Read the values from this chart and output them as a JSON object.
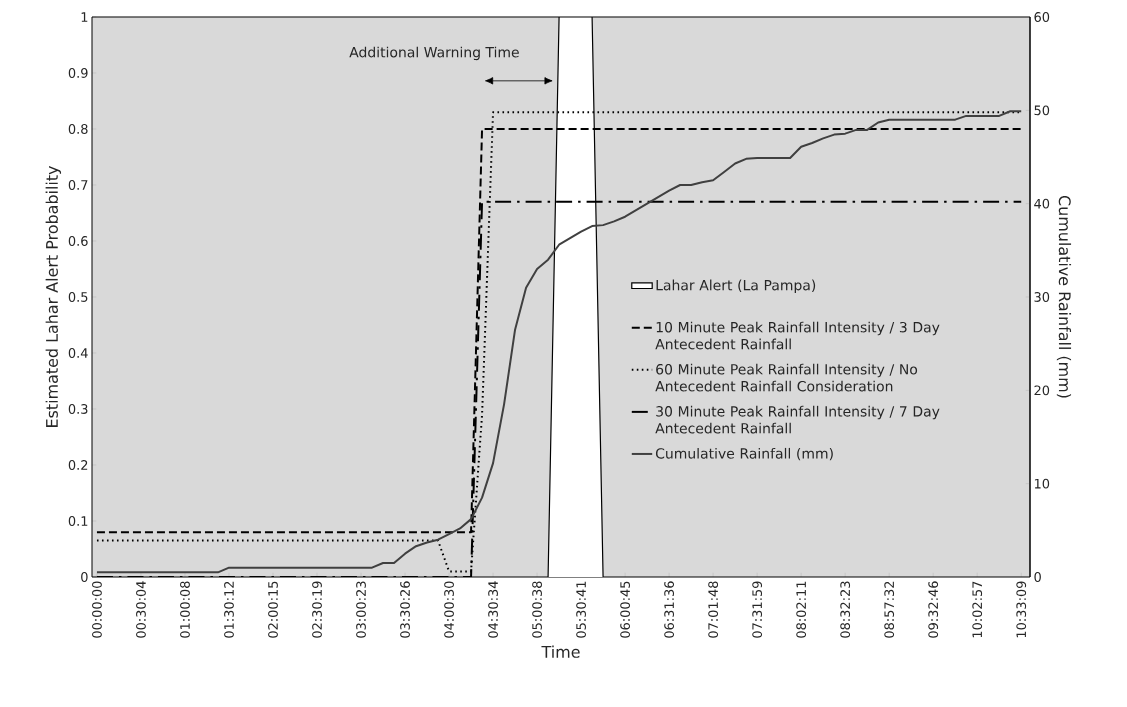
{
  "chart_data": {
    "type": "line",
    "xlabel": "Time",
    "ylabel": "Estimated Lahar Alert Probability",
    "y2label": "Cumulative Rainfall (mm)",
    "categories": [
      "00:00:00",
      null,
      null,
      null,
      "00:30:04",
      null,
      null,
      null,
      "01:00:08",
      null,
      null,
      null,
      "01:30:12",
      null,
      null,
      null,
      "02:00:15",
      null,
      null,
      null,
      "02:30:19",
      null,
      null,
      null,
      "03:00:23",
      null,
      null,
      null,
      "03:30:26",
      null,
      null,
      null,
      "04:00:30",
      null,
      null,
      null,
      "04:30:34",
      null,
      null,
      null,
      "05:00:38",
      null,
      null,
      null,
      "05:30:41",
      null,
      null,
      null,
      "06:00:45",
      null,
      null,
      null,
      "06:31:36",
      null,
      null,
      null,
      "07:01:48",
      null,
      null,
      null,
      "07:31:59",
      null,
      null,
      null,
      "08:02:11",
      null,
      null,
      null,
      "08:32:23",
      null,
      null,
      null,
      "08:57:32",
      null,
      null,
      null,
      "09:32:46",
      null,
      null,
      null,
      "10:02:57",
      null,
      null,
      null,
      "10:33:09"
    ],
    "ylim": [
      0,
      1
    ],
    "yticks": [
      0,
      0.1,
      0.2,
      0.3,
      0.4,
      0.5,
      0.6,
      0.7,
      0.8,
      0.9,
      1
    ],
    "y2lim": [
      0,
      60
    ],
    "y2ticks": [
      0,
      10,
      20,
      30,
      40,
      50,
      60
    ],
    "legend": "right",
    "marker": "none",
    "annotations": [
      "Additional Warning Time"
    ],
    "series": [
      {
        "name": "Lahar Alert (La Pampa)",
        "type": "area",
        "color": "#ffffff",
        "values": [
          null,
          null,
          null,
          null,
          null,
          null,
          null,
          null,
          null,
          null,
          null,
          null,
          null,
          null,
          null,
          null,
          null,
          null,
          null,
          null,
          null,
          null,
          null,
          null,
          null,
          null,
          null,
          null,
          null,
          null,
          null,
          null,
          null,
          null,
          null,
          null,
          null,
          null,
          null,
          null,
          null,
          0,
          1,
          1,
          1,
          1,
          0,
          null,
          null,
          null,
          null,
          null,
          null,
          null,
          null,
          null,
          null,
          null,
          null,
          null,
          null,
          null,
          null,
          null,
          null,
          null,
          null,
          null,
          null,
          null,
          null,
          null,
          null,
          null,
          null,
          null,
          null,
          null,
          null,
          null,
          null,
          null,
          null,
          null,
          null
        ]
      },
      {
        "name": "10 Minute Peak Rainfall Intensity / 3 Day Antecedent Rainfall",
        "color": "#000000",
        "line_style": "dashed",
        "values": [
          0.08,
          0.08,
          0.08,
          0.08,
          0.08,
          0.08,
          0.08,
          0.08,
          0.08,
          0.08,
          0.08,
          0.08,
          0.08,
          0.08,
          0.08,
          0.08,
          0.08,
          0.08,
          0.08,
          0.08,
          0.08,
          0.08,
          0.08,
          0.08,
          0.08,
          0.08,
          0.08,
          0.08,
          0.08,
          0.08,
          0.08,
          0.08,
          0.08,
          0.08,
          0.08,
          0.8,
          0.8,
          0.8,
          0.8,
          0.8,
          0.8,
          0.8,
          0.8,
          0.8,
          0.8,
          0.8,
          0.8,
          0.8,
          0.8,
          0.8,
          0.8,
          0.8,
          0.8,
          0.8,
          0.8,
          0.8,
          0.8,
          0.8,
          0.8,
          0.8,
          0.8,
          0.8,
          0.8,
          0.8,
          0.8,
          0.8,
          0.8,
          0.8,
          0.8,
          0.8,
          0.8,
          0.8,
          0.8,
          0.8,
          0.8,
          0.8,
          0.8,
          0.8,
          0.8,
          0.8,
          0.8,
          0.8,
          0.8,
          0.8,
          0.8
        ]
      },
      {
        "name": "60 Minute Peak Rainfall Intensity / No Antecedent Rainfall Consideration",
        "color": "#000000",
        "line_style": "dotted",
        "values": [
          0.065,
          0.065,
          0.065,
          0.065,
          0.065,
          0.065,
          0.065,
          0.065,
          0.065,
          0.065,
          0.065,
          0.065,
          0.065,
          0.065,
          0.065,
          0.065,
          0.065,
          0.065,
          0.065,
          0.065,
          0.065,
          0.065,
          0.065,
          0.065,
          0.065,
          0.065,
          0.065,
          0.065,
          0.065,
          0.065,
          0.065,
          0.065,
          0.01,
          0.01,
          0.01,
          0.29,
          0.83,
          0.83,
          0.83,
          0.83,
          0.83,
          0.83,
          0.83,
          0.83,
          0.83,
          0.83,
          0.83,
          0.83,
          0.83,
          0.83,
          0.83,
          0.83,
          0.83,
          0.83,
          0.83,
          0.83,
          0.83,
          0.83,
          0.83,
          0.83,
          0.83,
          0.83,
          0.83,
          0.83,
          0.83,
          0.83,
          0.83,
          0.83,
          0.83,
          0.83,
          0.83,
          0.83,
          0.83,
          0.83,
          0.83,
          0.83,
          0.83,
          0.83,
          0.83,
          0.83,
          0.83,
          0.83,
          0.83,
          0.83,
          0.83
        ]
      },
      {
        "name": "30 Minute Peak Rainfall Intensity / 7 Day Antecedent Rainfall",
        "color": "#000000",
        "line_style": "dashdot",
        "values": [
          0,
          0,
          0,
          0,
          0,
          0,
          0,
          0,
          0,
          0,
          0,
          0,
          0,
          0,
          0,
          0,
          0,
          0,
          0,
          0,
          0,
          0,
          0,
          0,
          0,
          0,
          0,
          0,
          0,
          0,
          0,
          0,
          0,
          0,
          0,
          0.67,
          0.67,
          0.67,
          0.67,
          0.67,
          0.67,
          0.67,
          0.67,
          0.67,
          0.67,
          0.67,
          0.67,
          0.67,
          0.67,
          0.67,
          0.67,
          0.67,
          0.67,
          0.67,
          0.67,
          0.67,
          0.67,
          0.67,
          0.67,
          0.67,
          0.67,
          0.67,
          0.67,
          0.67,
          0.67,
          0.67,
          0.67,
          0.67,
          0.67,
          0.67,
          0.67,
          0.67,
          0.67,
          0.67,
          0.67,
          0.67,
          0.67,
          0.67,
          0.67,
          0.67,
          0.67,
          0.67,
          0.67,
          0.67,
          0.67
        ]
      },
      {
        "name": "Cumulative Rainfall (mm)",
        "color": "#404040",
        "line_style": "solid",
        "axis": "y2",
        "values": [
          0.5,
          0.5,
          0.5,
          0.5,
          0.5,
          0.5,
          0.5,
          0.5,
          0.5,
          0.5,
          0.5,
          0.5,
          1,
          1,
          1,
          1,
          1,
          1,
          1,
          1,
          1,
          1,
          1,
          1,
          1,
          1,
          1.5,
          1.5,
          2.5,
          3.3,
          3.7,
          4,
          4.6,
          5.2,
          6.2,
          8.5,
          12.2,
          18.5,
          26.5,
          31,
          33,
          34,
          35.6,
          36.3,
          37,
          37.6,
          37.7,
          38.1,
          38.6,
          39.3,
          40,
          40.7,
          41.4,
          42,
          42,
          42.3,
          42.5,
          43.4,
          44.3,
          44.8,
          44.9,
          44.9,
          44.9,
          44.9,
          46.1,
          46.5,
          47,
          47.4,
          47.5,
          47.9,
          47.9,
          48.7,
          49,
          49,
          49,
          49,
          49,
          49,
          49,
          49.4,
          49.4,
          49.4,
          49.4,
          49.9,
          49.9
        ]
      }
    ]
  }
}
